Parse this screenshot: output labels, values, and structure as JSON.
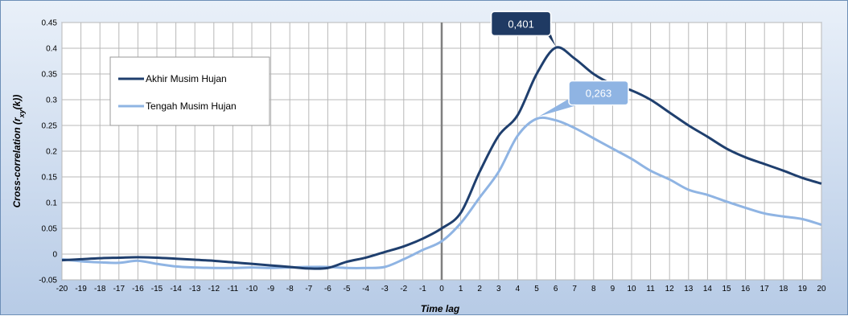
{
  "chart_data": {
    "type": "line",
    "title": "",
    "xlabel": "Time lag",
    "ylabel": "Cross-correlation (r",
    "ylabel_subscript": "xy",
    "ylabel_suffix": "(k))",
    "xlim": [
      -20,
      20
    ],
    "ylim": [
      -0.05,
      0.45
    ],
    "x": [
      -20,
      -19,
      -18,
      -17,
      -16,
      -15,
      -14,
      -13,
      -12,
      -11,
      -10,
      -9,
      -8,
      -7,
      -6,
      -5,
      -4,
      -3,
      -2,
      -1,
      0,
      1,
      2,
      3,
      4,
      5,
      6,
      7,
      8,
      9,
      10,
      11,
      12,
      13,
      14,
      15,
      16,
      17,
      18,
      19,
      20
    ],
    "x_tick_labels": [
      "-20",
      "-19",
      "-18",
      "-17",
      "-16",
      "-15",
      "-14",
      "-13",
      "-12",
      "-11",
      "-10",
      "-9",
      "-8",
      "-7",
      "-6",
      "-5",
      "-4",
      "-3",
      "-2",
      "-1",
      "0",
      "1",
      "2",
      "3",
      "4",
      "5",
      "6",
      "7",
      "8",
      "9",
      "10",
      "11",
      "12",
      "13",
      "14",
      "15",
      "16",
      "17",
      "18",
      "19",
      "20"
    ],
    "y_ticks": [
      -0.05,
      0,
      0.05,
      0.1,
      0.15,
      0.2,
      0.25,
      0.3,
      0.35,
      0.4,
      0.45
    ],
    "y_tick_labels": [
      "-0.05",
      "0",
      "0.05",
      "0.1",
      "0.15",
      "0.2",
      "0.25",
      "0.3",
      "0.35",
      "0.4",
      "0.45"
    ],
    "grid": true,
    "zero_line_x": 0,
    "legend": "upper-left",
    "series": [
      {
        "name": "Akhir Musim Hujan",
        "color": "#1f3f6e",
        "values": [
          -0.012,
          -0.01,
          -0.008,
          -0.007,
          -0.006,
          -0.007,
          -0.009,
          -0.011,
          -0.013,
          -0.016,
          -0.019,
          -0.022,
          -0.025,
          -0.028,
          -0.027,
          -0.015,
          -0.007,
          0.004,
          0.015,
          0.03,
          0.05,
          0.08,
          0.16,
          0.23,
          0.27,
          0.35,
          0.401,
          0.38,
          0.35,
          0.33,
          0.318,
          0.3,
          0.275,
          0.25,
          0.228,
          0.205,
          0.188,
          0.175,
          0.162,
          0.148,
          0.137
        ]
      },
      {
        "name": "Tengah Musim Hujan",
        "color": "#8fb4e3",
        "values": [
          -0.01,
          -0.014,
          -0.016,
          -0.017,
          -0.013,
          -0.019,
          -0.024,
          -0.026,
          -0.027,
          -0.027,
          -0.026,
          -0.027,
          -0.026,
          -0.025,
          -0.025,
          -0.027,
          -0.027,
          -0.025,
          -0.01,
          0.008,
          0.025,
          0.06,
          0.11,
          0.16,
          0.23,
          0.263,
          0.26,
          0.245,
          0.225,
          0.205,
          0.185,
          0.162,
          0.145,
          0.125,
          0.115,
          0.102,
          0.09,
          0.079,
          0.073,
          0.068,
          0.057
        ]
      }
    ],
    "annotations": [
      {
        "text": "0,401",
        "x": 6,
        "y": 0.401,
        "series": 0
      },
      {
        "text": "0,263",
        "x": 5,
        "y": 0.263,
        "series": 1
      }
    ]
  }
}
